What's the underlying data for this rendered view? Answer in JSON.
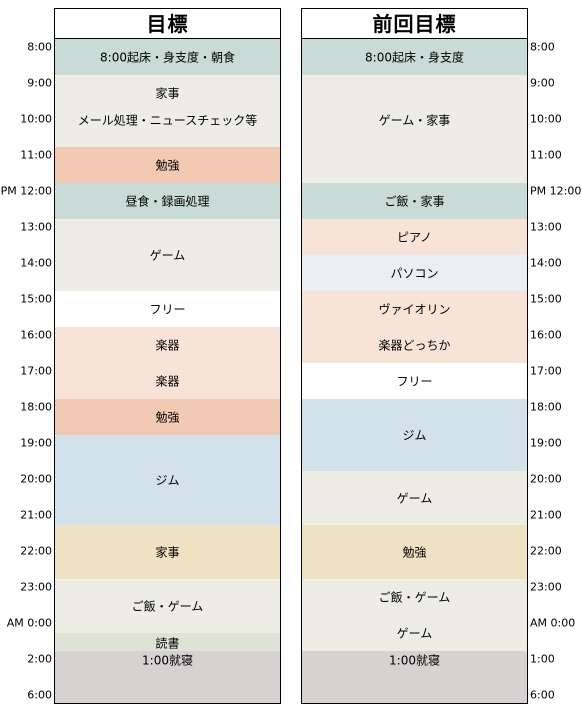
{
  "headers": {
    "left": "目標",
    "right": "前回目標"
  },
  "colors": {
    "teal": "#c9dbd6",
    "cream": "#edede5",
    "peach": "#f2c9b2",
    "lightpeach": "#f7e3d7",
    "lightblue": "#d3e1eb",
    "paleblue": "#e9eff5",
    "sand": "#efe2c3",
    "sage": "#dfe3d5",
    "gray": "#d7d2d2",
    "white": "#ffffff"
  },
  "left_times": [
    "8:00",
    "9:00",
    "10:00",
    "11:00",
    "PM 12:00",
    "13:00",
    "14:00",
    "15:00",
    "16:00",
    "17:00",
    "18:00",
    "19:00",
    "20:00",
    "21:00",
    "22:00",
    "23:00",
    "AM 0:00",
    "2:00",
    "6:00"
  ],
  "right_times": [
    "8:00",
    "9:00",
    "10:00",
    "11:00",
    "PM 12:00",
    "13:00",
    "14:00",
    "15:00",
    "16:00",
    "17:00",
    "18:00",
    "19:00",
    "20:00",
    "21:00",
    "22:00",
    "23:00",
    "AM 0:00",
    "1:00",
    "6:00"
  ],
  "left_labels": [
    "8:00起床・身支度・朝食",
    "家事",
    "メール処理・ニュースチェック等",
    "勉強",
    "昼食・録画処理",
    "ゲーム",
    "フリー",
    "楽器",
    "楽器",
    "勉強",
    "ジム",
    "家事",
    "ご飯・ゲーム",
    "読書",
    "1:00就寝"
  ],
  "right_labels": [
    "8:00起床・身支度",
    "ゲーム・家事",
    "ご飯・家事",
    "ピアノ",
    "パソコン",
    "ヴァイオリン",
    "楽器どっちか",
    "フリー",
    "ジム",
    "ゲーム",
    "勉強",
    "ご飯・ゲーム",
    "ゲーム",
    "1:00就寝"
  ]
}
